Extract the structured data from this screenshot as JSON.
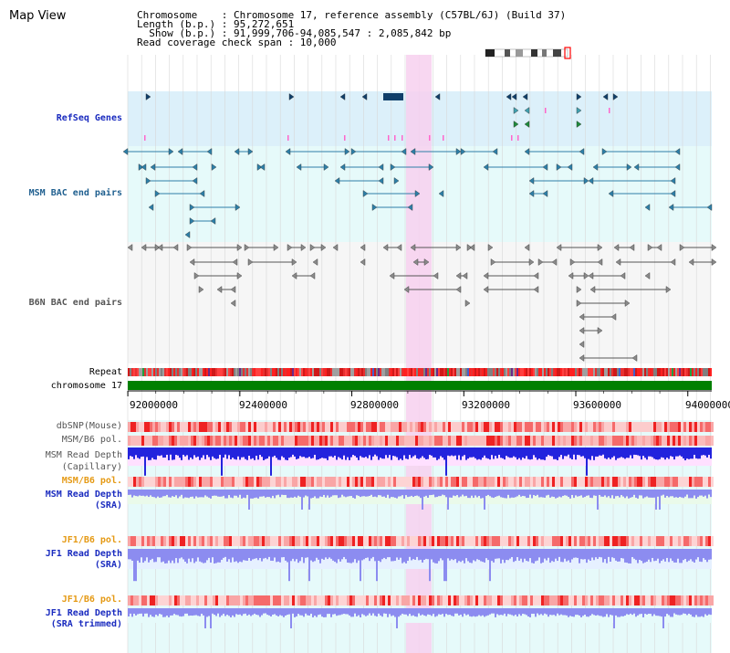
{
  "header": {
    "title": "Map View",
    "info_lines": [
      "Chromosome    : Chromosome 17, reference assembly (C57BL/6J) (Build 37)",
      "Length (b.p.) : 95,272,651",
      "  Show (b.p.) : 91,999,706-94,085,547 : 2,085,842 bp",
      "Read coverage check span : 10,000"
    ]
  },
  "tracks": {
    "refseq": "RefSeq Genes",
    "msm_bac": "MSM BAC end pairs",
    "b6n_bac": "B6N BAC end pairs",
    "repeat": "Repeat",
    "chromosome": "chromosome 17",
    "dbsnp": "dbSNP(Mouse)",
    "msm_b6_pol_1": "MSM/B6 pol.",
    "msm_read_depth_cap": [
      "MSM Read Depth",
      "(Capillary)"
    ],
    "msm_b6_pol_2": "MSM/B6 pol.",
    "msm_read_depth_sra": [
      "MSM Read Depth",
      "(SRA)"
    ],
    "jf1_b6_pol_1": "JF1/B6 pol.",
    "jf1_read_depth_sra": [
      "JF1 Read Depth",
      "(SRA)"
    ],
    "jf1_b6_pol_2": "JF1/B6 pol.",
    "jf1_read_depth_trim": [
      "JF1 Read Depth",
      "(SRA trimmed)"
    ]
  },
  "axis": {
    "ticks": [
      "92000000",
      "92400000",
      "92800000",
      "93200000",
      "93600000",
      "94000000"
    ],
    "tick_values": [
      92000000,
      92400000,
      92800000,
      93200000,
      93600000,
      94000000
    ],
    "range": [
      91999706,
      94085547
    ]
  },
  "colors": {
    "refseq_bg": "#dcf0fa",
    "msm_bg": "#e6fafa",
    "b6n_bg": "#f6f6f6",
    "chromosome_bar": "#008000",
    "highlight": "#f7d0ee",
    "refseq_feature": "#0f3f6a",
    "msm_feature": "#2d7fa8",
    "b6n_feature": "#8a8a8a",
    "depth_blue": "#2323dd",
    "depth_light": "#8c8cf0"
  }
}
